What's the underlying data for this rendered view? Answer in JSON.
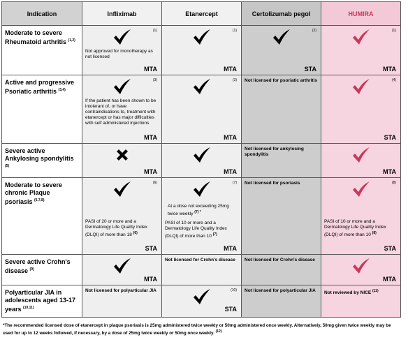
{
  "header": {
    "indication": "Indication",
    "infliximab": "Infliximab",
    "etanercept": "Etanercept",
    "certolizumab": "Certolizumab pegol",
    "humira": "HUMIRA"
  },
  "colors": {
    "humira_accent": "#c8385d",
    "tick_black": "#000000"
  },
  "rows": [
    {
      "indication": "Moderate to severe Rheumatoid arthritis",
      "indication_ref": "(1,2)",
      "infliximab": {
        "ref": "(1)",
        "note": "Not approved for monotherapy as not licensed",
        "label": "MTA",
        "icon": "check-icon"
      },
      "etanercept": {
        "ref": "(1)",
        "label": "MTA",
        "icon": "check-icon"
      },
      "certolizumab": {
        "ref": "(2)",
        "label": "STA",
        "icon": "check-icon"
      },
      "humira": {
        "ref": "(1)",
        "label": "MTA",
        "icon": "check-icon"
      }
    },
    {
      "indication": "Active and progressive Psoriatic arthritis",
      "indication_ref": "(3,4)",
      "infliximab": {
        "ref": "(3)",
        "note": "If the patient has been shown to be intolerant of, or have contraindications to, treatment with etanercept or has major difficulties with self administered injections",
        "label": "MTA",
        "icon": "check-icon"
      },
      "etanercept": {
        "ref": "(3)",
        "label": "MTA",
        "icon": "check-icon"
      },
      "certolizumab": {
        "note": "Not licensed for psoriatic arthritis"
      },
      "humira": {
        "ref": "(4)",
        "label": "STA",
        "icon": "check-icon"
      }
    },
    {
      "indication": "Severe active Ankylosing spondylitis",
      "indication_ref": "(5)",
      "infliximab": {
        "label": "MTA",
        "icon": "cross-icon"
      },
      "etanercept": {
        "label": "MTA",
        "icon": "check-icon"
      },
      "certolizumab": {
        "note": "Not licensed for ankylosing spondylitis"
      },
      "humira": {
        "label": "MTA",
        "icon": "check-icon"
      }
    },
    {
      "indication": "Moderate to severe chronic Plaque psoriasis",
      "indication_ref": "(6,7,8)",
      "infliximab": {
        "ref": "(6)",
        "note": "PASI of 20 or more and a Dermatology Life Quality Index (DLQI) of more than 18",
        "note_ref": "(6)",
        "label": "STA",
        "icon": "check-icon"
      },
      "etanercept": {
        "ref": "(7)",
        "dose": "At a dose not exceeding 25mg twice weekly",
        "dose_ref": "(7) *",
        "note": "PASI of 10 or more and a Dermatology Life Quality Index (DLQI) of more than 10",
        "note_ref": "(7)",
        "label": "MTA",
        "icon": "check-icon"
      },
      "certolizumab": {
        "note": "Not licensed for psoriasis"
      },
      "humira": {
        "ref": "(8)",
        "note": "PASI of 10 or more and a Dermatology Life Quality Index (DLQI) of more than 10",
        "note_ref": "(8)",
        "label": "STA",
        "icon": "check-icon"
      }
    },
    {
      "indication": "Severe active Crohn's disease",
      "indication_ref": "(9)",
      "infliximab": {
        "label": "MTA",
        "icon": "check-icon"
      },
      "etanercept": {
        "note": "Not licensed for Crohn's disease"
      },
      "certolizumab": {
        "note": "Not licensed for Crohn's disease"
      },
      "humira": {
        "label": "MTA",
        "icon": "check-icon"
      }
    },
    {
      "indication": "Polyarticular JIA in adolescents aged 13-17 years",
      "indication_ref": "(10,11)",
      "infliximab": {
        "note": "Not licensed for polyarticular JIA"
      },
      "etanercept": {
        "ref": "(10)",
        "label": "STA",
        "icon": "check-icon"
      },
      "certolizumab": {
        "note": "Not licensed for polyarticular JIA"
      },
      "humira": {
        "note": "Not reviewed by NICE",
        "note_ref": "(11)"
      }
    }
  ],
  "footnote": {
    "text": "*The recommended licensed dose of etanercept in plaque psoriasis is 25mg administered twice weekly or 50mg administered once weekly. Alternatively, 50mg given twice weekly may be used for up to 12 weeks followed, if necessary, by a dose of 25mg twice weekly or 50mg once weekly.",
    "ref": "(12)"
  }
}
